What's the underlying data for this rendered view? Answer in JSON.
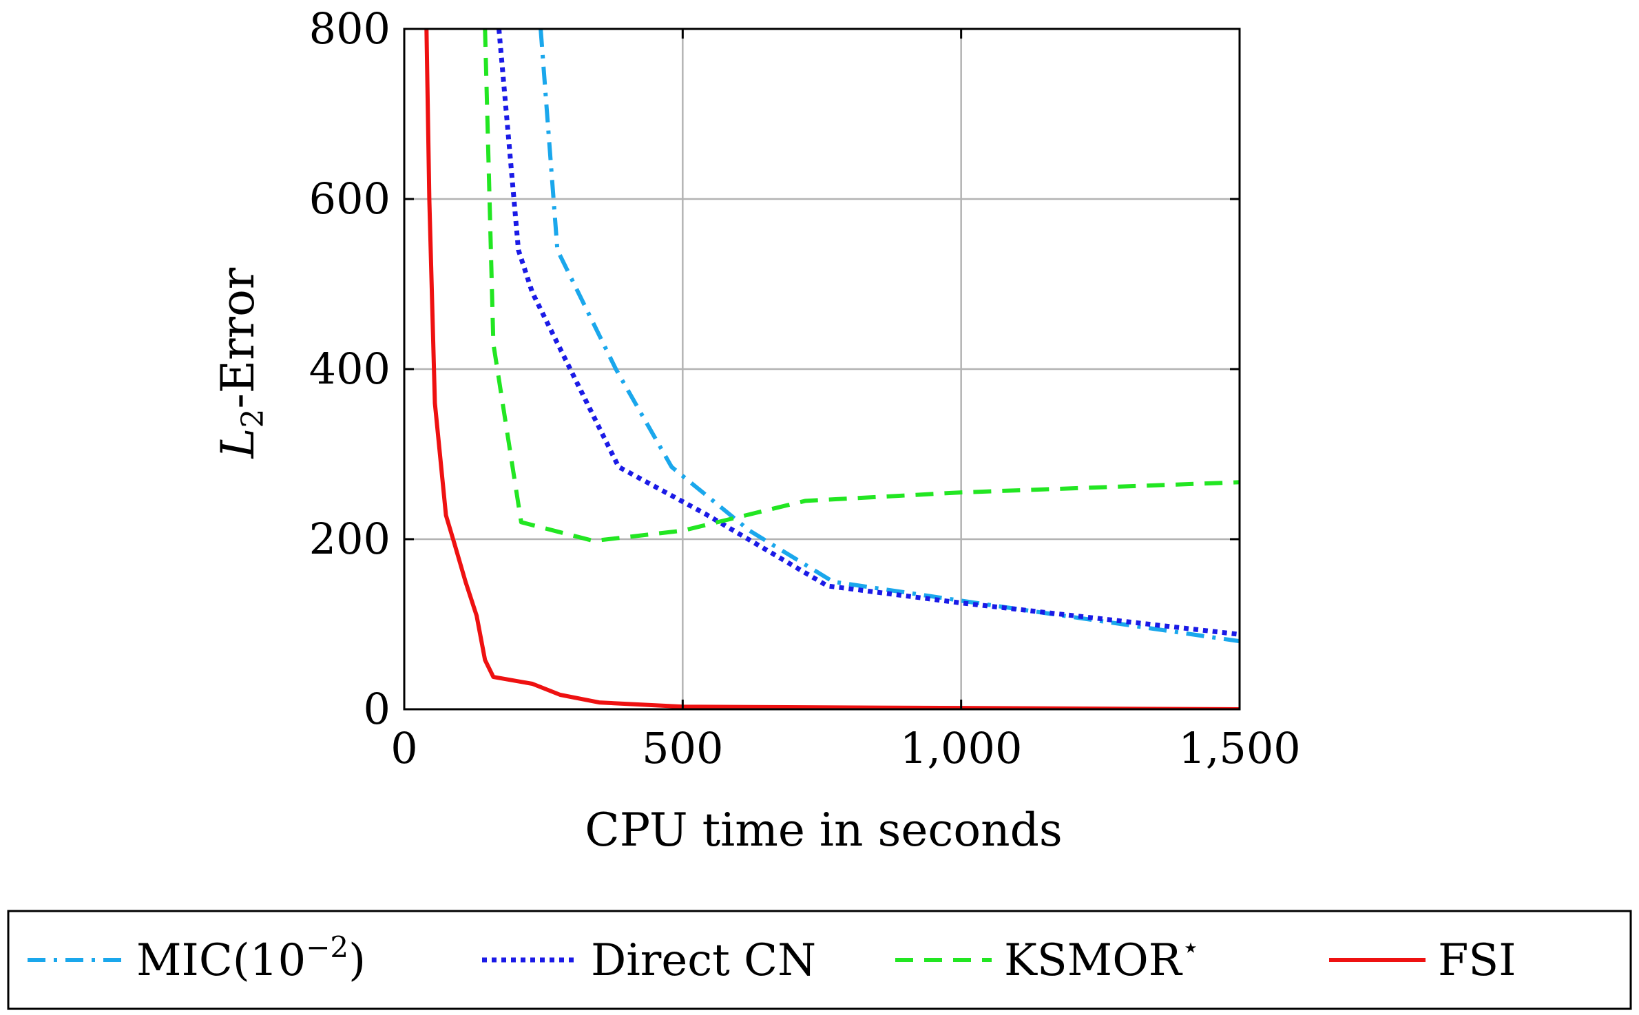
{
  "chart_data": {
    "type": "line",
    "title": "",
    "xlabel": "CPU time in seconds",
    "ylabel": {
      "base": "L",
      "sub": "2",
      "rest": "-Error"
    },
    "xlim": [
      0,
      1500
    ],
    "ylim": [
      0,
      800
    ],
    "xticks": [
      0,
      500,
      1000,
      1500
    ],
    "xtick_labels": [
      "0",
      "500",
      "1,000",
      "1,500"
    ],
    "yticks": [
      0,
      200,
      400,
      600,
      800
    ],
    "ytick_labels": [
      "0",
      "200",
      "400",
      "600",
      "800"
    ],
    "grid": true,
    "legend_position": "below",
    "series": [
      {
        "name": "MIC(10^-2)",
        "legend": {
          "main": "MIC(10",
          "sup": "−2",
          "tail": ")"
        },
        "color": "#1aa7ec",
        "style": "dash-dot",
        "x": [
          245,
          275,
          380,
          480,
          620,
          770,
          1100,
          1500
        ],
        "y": [
          800,
          540,
          400,
          285,
          210,
          150,
          118,
          80
        ]
      },
      {
        "name": "Direct CN",
        "legend": {
          "main": "Direct CN",
          "sup": "",
          "tail": ""
        },
        "color": "#1a1ae6",
        "style": "dotted",
        "x": [
          170,
          205,
          230,
          385,
          540,
          760,
          1000,
          1500
        ],
        "y": [
          800,
          540,
          490,
          285,
          230,
          145,
          125,
          88
        ]
      },
      {
        "name": "KSMOR*",
        "legend": {
          "main": "KSMOR",
          "sup": "⋆",
          "tail": ""
        },
        "color": "#22e622",
        "style": "dashed",
        "x": [
          145,
          160,
          210,
          340,
          500,
          720,
          1000,
          1500
        ],
        "y": [
          800,
          430,
          220,
          198,
          210,
          245,
          255,
          267
        ]
      },
      {
        "name": "FSI",
        "legend": {
          "main": "FSI",
          "sup": "",
          "tail": ""
        },
        "color": "#ee1111",
        "style": "solid",
        "x": [
          40,
          45,
          55,
          75,
          90,
          110,
          130,
          145,
          160,
          230,
          280,
          350,
          500,
          1500
        ],
        "y": [
          800,
          600,
          360,
          228,
          195,
          150,
          110,
          58,
          38,
          30,
          17,
          8,
          3,
          0
        ]
      }
    ]
  }
}
